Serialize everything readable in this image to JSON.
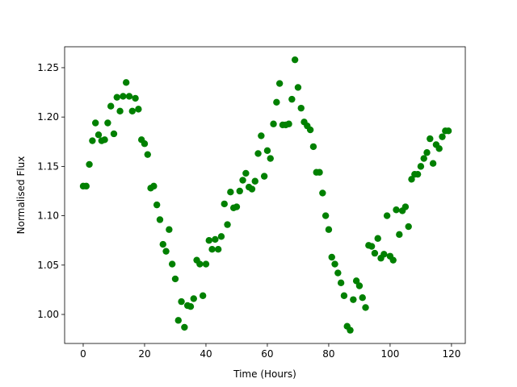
{
  "chart_data": {
    "type": "scatter",
    "x_label": "Time (Hours)",
    "y_label": "Normalised Flux",
    "color": "#008000",
    "x": [
      0,
      1,
      2,
      3,
      4,
      5,
      6,
      7,
      8,
      9,
      10,
      11,
      12,
      13,
      14,
      15,
      16,
      17,
      18,
      19,
      20,
      21,
      22,
      23,
      24,
      25,
      26,
      27,
      28,
      29,
      30,
      31,
      32,
      33,
      34,
      35,
      36,
      37,
      38,
      39,
      40,
      41,
      42,
      43,
      44,
      45,
      46,
      47,
      48,
      49,
      50,
      51,
      52,
      53,
      54,
      55,
      56,
      57,
      58,
      59,
      60,
      61,
      62,
      63,
      64,
      65,
      66,
      67,
      68,
      69,
      70,
      71,
      72,
      73,
      74,
      75,
      76,
      77,
      78,
      79,
      80,
      81,
      82,
      83,
      84,
      85,
      86,
      87,
      88,
      89,
      90,
      91,
      92,
      93,
      94,
      95,
      96,
      97,
      98,
      99,
      100,
      101,
      102,
      103,
      104,
      105,
      106,
      107,
      108,
      109,
      110,
      111,
      112,
      113,
      114,
      115,
      116,
      117,
      118,
      119
    ],
    "values": [
      1.13,
      1.13,
      1.152,
      1.176,
      1.194,
      1.182,
      1.176,
      1.177,
      1.194,
      1.211,
      1.183,
      1.22,
      1.206,
      1.221,
      1.235,
      1.221,
      1.206,
      1.219,
      1.208,
      1.177,
      1.173,
      1.162,
      1.128,
      1.13,
      1.111,
      1.096,
      1.071,
      1.064,
      1.086,
      1.051,
      1.036,
      0.994,
      1.013,
      0.987,
      1.009,
      1.008,
      1.016,
      1.055,
      1.051,
      1.019,
      1.051,
      1.075,
      1.066,
      1.076,
      1.066,
      1.079,
      1.112,
      1.091,
      1.124,
      1.108,
      1.109,
      1.125,
      1.136,
      1.143,
      1.129,
      1.127,
      1.135,
      1.163,
      1.181,
      1.14,
      1.166,
      1.158,
      1.193,
      1.215,
      1.234,
      1.192,
      1.192,
      1.193,
      1.218,
      1.258,
      1.23,
      1.209,
      1.195,
      1.191,
      1.187,
      1.17,
      1.144,
      1.144,
      1.123,
      1.1,
      1.086,
      1.058,
      1.051,
      1.042,
      1.032,
      1.019,
      0.988,
      0.984,
      1.015,
      1.034,
      1.029,
      1.017,
      1.007,
      1.07,
      1.069,
      1.062,
      1.077,
      1.057,
      1.061,
      1.1,
      1.059,
      1.055,
      1.106,
      1.081,
      1.105,
      1.109,
      1.089,
      1.137,
      1.142,
      1.142,
      1.15,
      1.158,
      1.164,
      1.178,
      1.153,
      1.172,
      1.168,
      1.18,
      1.186,
      1.186
    ],
    "xlim": [
      -6.05,
      124.5
    ],
    "ylim": [
      0.9706,
      1.2712
    ],
    "xticks": [
      0,
      20,
      40,
      60,
      80,
      100,
      120
    ],
    "yticks": [
      {
        "value": 1.0,
        "label": "1.00"
      },
      1.05,
      {
        "value": 1.1,
        "label": "1.10"
      },
      1.15,
      {
        "value": 1.2,
        "label": "1.20"
      },
      1.25
    ]
  }
}
